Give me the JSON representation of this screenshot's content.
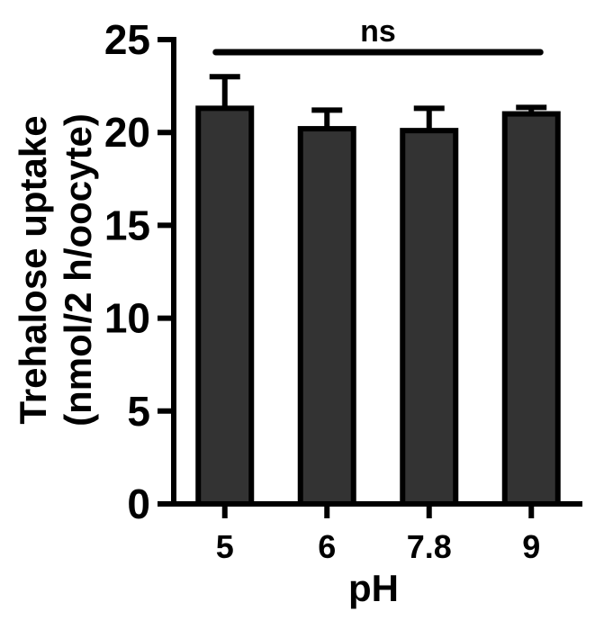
{
  "chart_data": {
    "type": "bar",
    "categories": [
      "5",
      "6",
      "7.8",
      "9"
    ],
    "values": [
      21.3,
      20.2,
      20.1,
      21.0
    ],
    "errors": [
      1.7,
      1.0,
      1.2,
      0.35
    ],
    "xlabel": "pH",
    "ylabel_line1": "Trehalose uptake",
    "ylabel_line2": "(nmol/2 h/oocyte)",
    "ylim": [
      0,
      25
    ],
    "yticks": [
      0,
      5,
      10,
      15,
      20,
      25
    ],
    "significance": {
      "label": "ns",
      "from": "5",
      "to": "9"
    },
    "bar_color": "#333333",
    "grid": false,
    "legend": "none"
  }
}
